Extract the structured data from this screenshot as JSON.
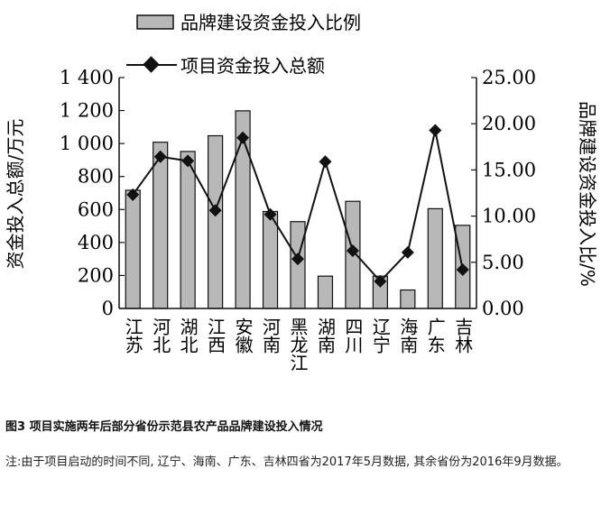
{
  "chart_data": {
    "type": "bar+line",
    "categories": [
      "江苏",
      "河北",
      "湖北",
      "江西",
      "安徽",
      "河南",
      "黑龙江",
      "湖南",
      "四川",
      "辽宁",
      "海南",
      "广东",
      "吉林"
    ],
    "series": [
      {
        "name": "品牌建设资金投入比例",
        "type": "bar",
        "axis": "right",
        "values": [
          12.8,
          18.0,
          17.0,
          18.7,
          21.4,
          10.5,
          9.4,
          3.5,
          11.6,
          3.5,
          2.0,
          10.8,
          9.0
        ]
      },
      {
        "name": "项目资金投入总额",
        "type": "line",
        "axis": "left",
        "values": [
          690,
          920,
          895,
          595,
          1035,
          570,
          300,
          890,
          350,
          165,
          340,
          1080,
          235
        ]
      }
    ],
    "ylabel_left": "资金投入总额/万元",
    "ylabel_right": "品牌建设资金投入比/%",
    "yticks_left": [
      "0",
      "200",
      "400",
      "600",
      "800",
      "1 000",
      "1 200",
      "1 400"
    ],
    "yticks_right": [
      "0.00",
      "5.00",
      "10.00",
      "15.00",
      "20.00",
      "25.00"
    ],
    "ylim_left": [
      0,
      1400
    ],
    "ylim_right": [
      0,
      25
    ],
    "legend_position": "top",
    "colors": {
      "bar_fill": "#b8b8b8",
      "bar_stroke": "#111111",
      "line": "#111111",
      "marker": "#111111"
    }
  },
  "caption": "图3  项目实施两年后部分省份示范县农产品品牌建设投入情况",
  "note": "注:由于项目启动的时间不同, 辽宁、海南、广东、吉林四省为2017年5月数据, 其余省份为2016年9月数据。"
}
